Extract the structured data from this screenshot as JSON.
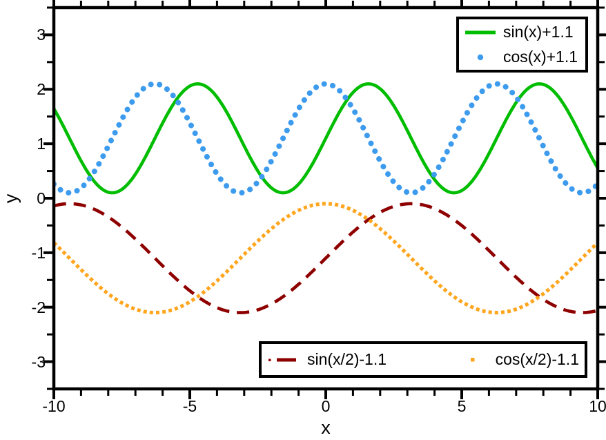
{
  "chart_data": {
    "type": "line",
    "title": "",
    "xlabel": "x",
    "ylabel": "y",
    "xlim": [
      -10,
      10
    ],
    "ylim": [
      -3.5,
      3.5
    ],
    "grid": false,
    "background_color": "#ffffff",
    "axis_color": "#000000",
    "xticks": {
      "major": [
        -10,
        -5,
        0,
        5,
        10
      ],
      "labels": [
        "-10",
        "-5",
        "0",
        "5",
        "10"
      ],
      "minor_step": 1
    },
    "yticks": {
      "major": [
        -3,
        -2,
        -1,
        0,
        1,
        2,
        3
      ],
      "labels": [
        "-3",
        "-2",
        "-1",
        "0",
        "1",
        "2",
        "3"
      ],
      "minor_step": 0.5
    },
    "series": [
      {
        "label": "sin(x)+1.1",
        "fn": "sin",
        "amplitude": 1,
        "x_divisor": 1,
        "y_offset": 1.1,
        "color": "#00bd00",
        "style": "solid",
        "legend": "top"
      },
      {
        "label": "cos(x)+1.1",
        "fn": "cos",
        "amplitude": 1,
        "x_divisor": 1,
        "y_offset": 1.1,
        "color": "#3d9bee",
        "style": "round-dots",
        "legend": "top"
      },
      {
        "label": "sin(x/2)-1.1",
        "fn": "sin",
        "amplitude": 1,
        "x_divisor": 2,
        "y_offset": -1.1,
        "color": "#8e0000",
        "style": "dashed",
        "legend": "bottom"
      },
      {
        "label": "cos(x/2)-1.1",
        "fn": "cos",
        "amplitude": 1,
        "x_divisor": 2,
        "y_offset": -1.1,
        "color": "#ffa61e",
        "style": "square-dots",
        "legend": "bottom"
      }
    ],
    "legends": [
      {
        "id": "top",
        "position": "top-right",
        "entries": [
          "sin(x)+1.1",
          "cos(x)+1.1"
        ]
      },
      {
        "id": "bottom",
        "position": "bottom-center",
        "entries": [
          "sin(x/2)-1.1",
          "cos(x/2)-1.1"
        ]
      }
    ]
  }
}
